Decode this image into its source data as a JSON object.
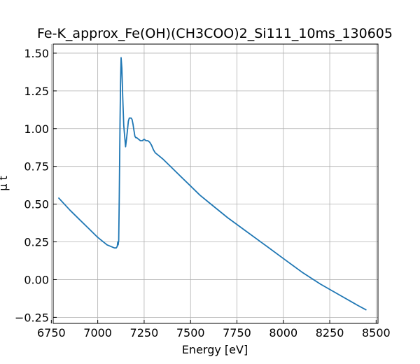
{
  "chart_data": {
    "type": "line",
    "title": "Fe-K_approx_Fe(OH)(CH3COO)2_Si111_10ms_130605",
    "xlabel": "Energy [eV]",
    "ylabel": "μ t",
    "xlim": [
      6760,
      8510
    ],
    "ylim": [
      -0.29,
      1.56
    ],
    "xticks": [
      6750,
      7000,
      7250,
      7500,
      7750,
      8000,
      8250,
      8500
    ],
    "yticks": [
      -0.25,
      0.0,
      0.25,
      0.5,
      0.75,
      1.0,
      1.25,
      1.5
    ],
    "xtick_labels": [
      "6750",
      "7000",
      "7250",
      "7500",
      "7750",
      "8000",
      "8250",
      "8500"
    ],
    "ytick_labels": [
      "−0.25",
      "0.00",
      "0.25",
      "0.50",
      "0.75",
      "1.00",
      "1.25",
      "1.50"
    ],
    "grid": true,
    "series": [
      {
        "color": "#1f77b4",
        "x": [
          6790,
          6850,
          6900,
          6950,
          7000,
          7050,
          7090,
          7100,
          7105,
          7108,
          7110,
          7113,
          7116,
          7120,
          7123,
          7126,
          7130,
          7135,
          7140,
          7145,
          7150,
          7155,
          7160,
          7165,
          7170,
          7175,
          7180,
          7185,
          7190,
          7195,
          7200,
          7205,
          7210,
          7220,
          7230,
          7240,
          7250,
          7260,
          7270,
          7280,
          7290,
          7300,
          7310,
          7320,
          7350,
          7400,
          7450,
          7500,
          7550,
          7600,
          7700,
          7800,
          7900,
          8000,
          8100,
          8200,
          8300,
          8400,
          8445
        ],
        "y": [
          0.54,
          0.46,
          0.4,
          0.34,
          0.28,
          0.23,
          0.21,
          0.21,
          0.22,
          0.25,
          0.23,
          0.26,
          0.55,
          1.05,
          1.3,
          1.47,
          1.4,
          1.2,
          1.02,
          0.95,
          0.88,
          0.93,
          0.99,
          1.05,
          1.07,
          1.07,
          1.07,
          1.06,
          1.03,
          0.99,
          0.95,
          0.94,
          0.94,
          0.93,
          0.92,
          0.92,
          0.93,
          0.92,
          0.92,
          0.91,
          0.89,
          0.86,
          0.84,
          0.83,
          0.8,
          0.74,
          0.68,
          0.62,
          0.56,
          0.51,
          0.41,
          0.32,
          0.23,
          0.14,
          0.05,
          -0.03,
          -0.1,
          -0.17,
          -0.2
        ]
      }
    ]
  }
}
